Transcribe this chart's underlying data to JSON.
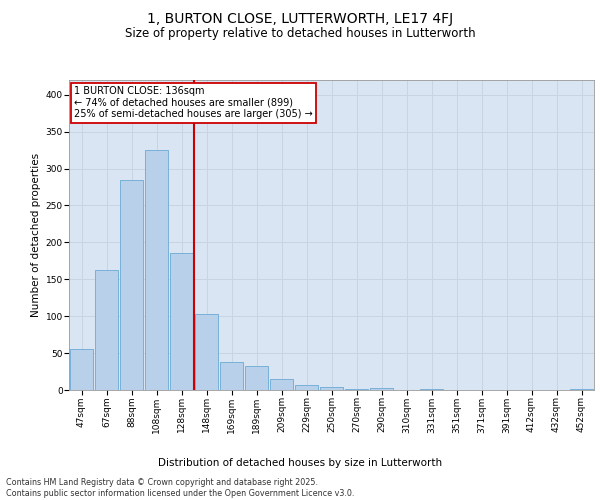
{
  "title_line1": "1, BURTON CLOSE, LUTTERWORTH, LE17 4FJ",
  "title_line2": "Size of property relative to detached houses in Lutterworth",
  "xlabel": "Distribution of detached houses by size in Lutterworth",
  "ylabel": "Number of detached properties",
  "categories": [
    "47sqm",
    "67sqm",
    "88sqm",
    "108sqm",
    "128sqm",
    "148sqm",
    "169sqm",
    "189sqm",
    "209sqm",
    "229sqm",
    "250sqm",
    "270sqm",
    "290sqm",
    "310sqm",
    "331sqm",
    "351sqm",
    "371sqm",
    "391sqm",
    "412sqm",
    "432sqm",
    "452sqm"
  ],
  "values": [
    55,
    163,
    285,
    325,
    185,
    103,
    38,
    33,
    15,
    7,
    4,
    1,
    3,
    0,
    2,
    0,
    0,
    0,
    0,
    0,
    2
  ],
  "bar_color": "#b8d0ea",
  "bar_edge_color": "#6aaad4",
  "grid_color": "#c8d4e3",
  "background_color": "#d9e5f3",
  "ref_line_color": "#cc0000",
  "annotation_text": "1 BURTON CLOSE: 136sqm\n← 74% of detached houses are smaller (899)\n25% of semi-detached houses are larger (305) →",
  "annotation_box_color": "#ffffff",
  "annotation_box_edge": "#cc0000",
  "footer_line1": "Contains HM Land Registry data © Crown copyright and database right 2025.",
  "footer_line2": "Contains public sector information licensed under the Open Government Licence v3.0.",
  "ylim": [
    0,
    420
  ],
  "yticks": [
    0,
    50,
    100,
    150,
    200,
    250,
    300,
    350,
    400
  ],
  "title1_fontsize": 10,
  "title2_fontsize": 8.5,
  "tick_fontsize": 6.5,
  "ylabel_fontsize": 7.5,
  "xlabel_fontsize": 7.5
}
